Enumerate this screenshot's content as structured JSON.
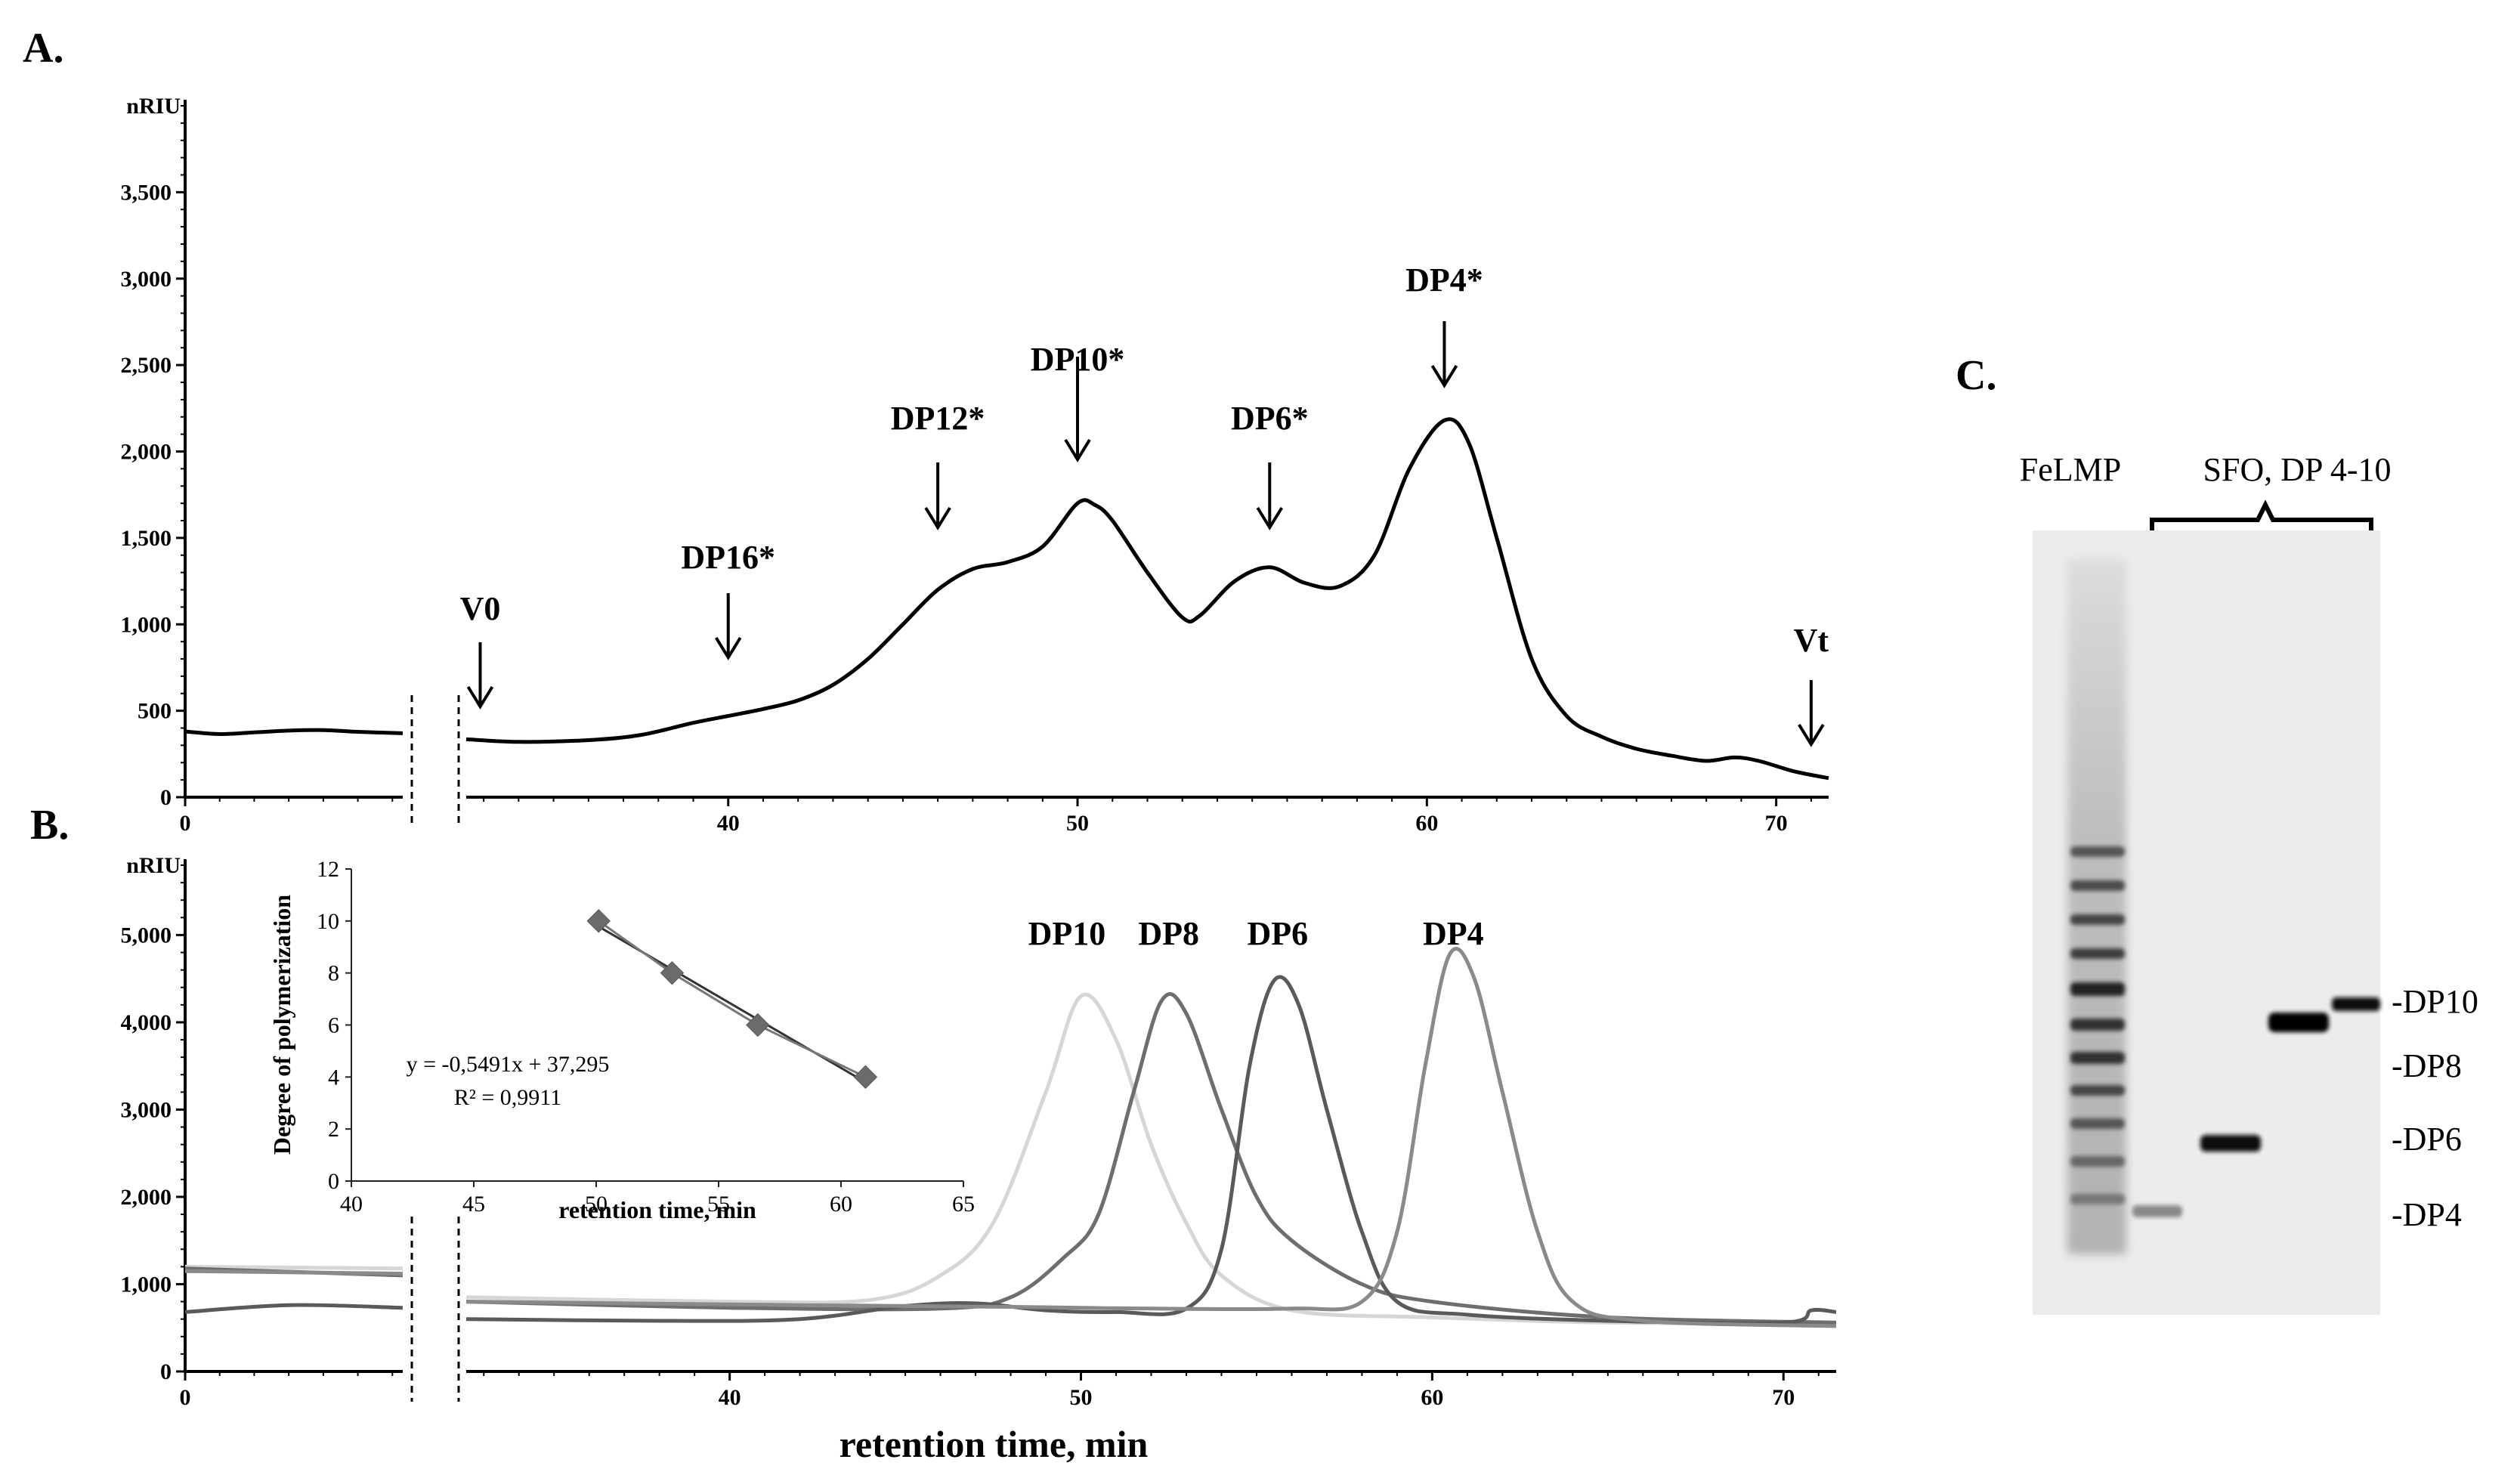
{
  "figure": {
    "panel_a_label": "A.",
    "panel_b_label": "B.",
    "panel_c_label": "C."
  },
  "chart_data": [
    {
      "id": "A",
      "type": "line",
      "ylabel": "nRIU",
      "xlabel": "",
      "ylim": [
        0,
        4000
      ],
      "yticks": [
        0,
        500,
        1000,
        1500,
        2000,
        2500,
        3000,
        3500
      ],
      "ytick_labels": [
        "0",
        "500",
        "1,000",
        "1,500",
        "2,000",
        "2,500",
        "3,000",
        "3,500"
      ],
      "xticks_left": [
        0
      ],
      "xticks_right": [
        40,
        50,
        60,
        70
      ],
      "x_break": {
        "left_range": [
          0,
          6.3
        ],
        "right_range": [
          32.5,
          71.5
        ]
      },
      "series": [
        {
          "name": "FeLMP",
          "color": "#000000",
          "left": [
            [
              0,
              380
            ],
            [
              1,
              365
            ],
            [
              2,
              375
            ],
            [
              3,
              385
            ],
            [
              4,
              388
            ],
            [
              5,
              378
            ],
            [
              6.3,
              370
            ]
          ],
          "right": [
            [
              32.5,
              335
            ],
            [
              34,
              320
            ],
            [
              36,
              330
            ],
            [
              37.5,
              360
            ],
            [
              39,
              430
            ],
            [
              40,
              470
            ],
            [
              41,
              510
            ],
            [
              42,
              560
            ],
            [
              43,
              650
            ],
            [
              44,
              800
            ],
            [
              45,
              1000
            ],
            [
              46,
              1200
            ],
            [
              47,
              1320
            ],
            [
              48,
              1360
            ],
            [
              49,
              1450
            ],
            [
              50,
              1700
            ],
            [
              50.5,
              1690
            ],
            [
              51,
              1600
            ],
            [
              52,
              1300
            ],
            [
              53,
              1040
            ],
            [
              53.5,
              1050
            ],
            [
              54.5,
              1250
            ],
            [
              55.5,
              1330
            ],
            [
              56.5,
              1240
            ],
            [
              57.5,
              1220
            ],
            [
              58.5,
              1400
            ],
            [
              59.5,
              1900
            ],
            [
              60.5,
              2180
            ],
            [
              61.2,
              2050
            ],
            [
              62,
              1500
            ],
            [
              63,
              800
            ],
            [
              64,
              470
            ],
            [
              65,
              350
            ],
            [
              66,
              280
            ],
            [
              67,
              240
            ],
            [
              68,
              210
            ],
            [
              68.8,
              230
            ],
            [
              69.5,
              210
            ],
            [
              70.5,
              150
            ],
            [
              71.5,
              110
            ]
          ]
        }
      ],
      "annotations": [
        {
          "label": "V0",
          "x": 32.9
        },
        {
          "label": "DP16*",
          "x": 40
        },
        {
          "label": "DP12*",
          "x": 46
        },
        {
          "label": "DP10*",
          "x": 50
        },
        {
          "label": "DP6*",
          "x": 55.5
        },
        {
          "label": "DP4*",
          "x": 60.5
        },
        {
          "label": "Vt",
          "x": 71
        }
      ]
    },
    {
      "id": "B",
      "type": "line",
      "ylabel": "nRIU",
      "xlabel": "retention time, min",
      "ylim": [
        0,
        5800
      ],
      "yticks": [
        0,
        1000,
        2000,
        3000,
        4000,
        5000
      ],
      "ytick_labels": [
        "0",
        "1,000",
        "2,000",
        "3,000",
        "4,000",
        "5,000"
      ],
      "xticks_left": [
        0
      ],
      "xticks_right": [
        40,
        50,
        60,
        70
      ],
      "x_break": {
        "left_range": [
          0,
          6.3
        ],
        "right_range": [
          32.5,
          71.5
        ]
      },
      "series": [
        {
          "name": "DP10",
          "color": "#d6d6d6",
          "left": [
            [
              0,
              1200
            ],
            [
              6.3,
              1180
            ]
          ],
          "right": [
            [
              32.5,
              850
            ],
            [
              40,
              800
            ],
            [
              44,
              820
            ],
            [
              46,
              1100
            ],
            [
              47.5,
              1700
            ],
            [
              49,
              3200
            ],
            [
              50,
              4300
            ],
            [
              51,
              3800
            ],
            [
              52,
              2600
            ],
            [
              53,
              1700
            ],
            [
              54,
              1100
            ],
            [
              56,
              700
            ],
            [
              60,
              620
            ],
            [
              65,
              560
            ],
            [
              71.5,
              540
            ]
          ]
        },
        {
          "name": "DP8",
          "color": "#6e6e6e",
          "left": [
            [
              0,
              1180
            ],
            [
              6.3,
              1100
            ]
          ],
          "right": [
            [
              32.5,
              800
            ],
            [
              40,
              730
            ],
            [
              46,
              720
            ],
            [
              48,
              850
            ],
            [
              49.5,
              1300
            ],
            [
              50.5,
              1800
            ],
            [
              51.5,
              3200
            ],
            [
              52.3,
              4250
            ],
            [
              53,
              4100
            ],
            [
              54,
              3000
            ],
            [
              55,
              2000
            ],
            [
              56,
              1500
            ],
            [
              58,
              1000
            ],
            [
              60,
              800
            ],
            [
              65,
              620
            ],
            [
              71.5,
              560
            ]
          ]
        },
        {
          "name": "DP6",
          "color": "#5a5a5a",
          "left": [
            [
              0,
              680
            ],
            [
              3,
              760
            ],
            [
              6.3,
              730
            ]
          ],
          "right": [
            [
              32.5,
              600
            ],
            [
              38,
              580
            ],
            [
              42,
              600
            ],
            [
              45,
              750
            ],
            [
              47,
              780
            ],
            [
              49,
              700
            ],
            [
              51,
              680
            ],
            [
              53,
              720
            ],
            [
              54,
              1400
            ],
            [
              54.8,
              3500
            ],
            [
              55.5,
              4480
            ],
            [
              56.2,
              4200
            ],
            [
              57,
              3000
            ],
            [
              58,
              1600
            ],
            [
              59,
              800
            ],
            [
              61,
              650
            ],
            [
              65,
              580
            ],
            [
              70,
              560
            ],
            [
              70.8,
              700
            ],
            [
              71.5,
              680
            ]
          ]
        },
        {
          "name": "DP4",
          "color": "#8a8a8a",
          "left": [
            [
              0,
              1150
            ],
            [
              6.3,
              1120
            ]
          ],
          "right": [
            [
              32.5,
              800
            ],
            [
              42,
              760
            ],
            [
              48,
              740
            ],
            [
              52,
              720
            ],
            [
              56,
              720
            ],
            [
              58,
              800
            ],
            [
              59,
              1600
            ],
            [
              59.8,
              3500
            ],
            [
              60.5,
              4780
            ],
            [
              61.2,
              4500
            ],
            [
              62,
              3200
            ],
            [
              63,
              1600
            ],
            [
              64,
              800
            ],
            [
              66,
              580
            ],
            [
              71.5,
              520
            ]
          ]
        }
      ],
      "annotations": [
        {
          "label": "DP10",
          "x": 49.6
        },
        {
          "label": "DP8",
          "x": 52.5
        },
        {
          "label": "DP6",
          "x": 55.6
        },
        {
          "label": "DP4",
          "x": 60.6
        }
      ]
    },
    {
      "id": "B-inset",
      "type": "scatter",
      "xlabel": "retention time, min",
      "ylabel": "Degree of polymerization",
      "xlim": [
        40,
        65
      ],
      "ylim": [
        0,
        12
      ],
      "xticks": [
        40,
        45,
        50,
        55,
        60,
        65
      ],
      "yticks": [
        0,
        2,
        4,
        6,
        8,
        10,
        12
      ],
      "x": [
        50.1,
        53.1,
        56.6,
        61.0
      ],
      "y": [
        10,
        8,
        6,
        4
      ],
      "trendline": {
        "slope": -0.5491,
        "intercept": 37.295
      },
      "equation": "y = -0,5491x + 37,295",
      "r2": "R² = 0,9911"
    },
    {
      "id": "C",
      "type": "gel",
      "lane_label_1": "FeLMP",
      "lane_label_2": "SFO, DP 4-10",
      "band_labels": [
        "-DP10",
        "-DP8",
        "-DP6",
        "-DP4"
      ]
    }
  ],
  "colors": {
    "axis": "#000000",
    "gel_bg": "#ececec"
  }
}
